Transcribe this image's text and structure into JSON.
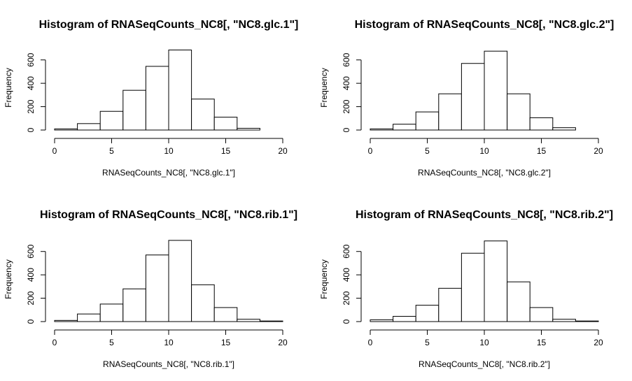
{
  "chart_data": [
    {
      "type": "bar",
      "title": "Histogram of RNASeqCounts_NC8[, \"NC8.glc.1\"]",
      "xlabel": "RNASeqCounts_NC8[, \"NC8.glc.1\"]",
      "ylabel": "Frequency",
      "bin_edges": [
        0,
        2,
        4,
        6,
        8,
        10,
        12,
        14,
        16,
        18,
        20
      ],
      "values": [
        10,
        55,
        160,
        340,
        545,
        685,
        265,
        110,
        15,
        0
      ],
      "xlim": [
        0,
        20
      ],
      "ylim": [
        0,
        700
      ],
      "xticks": [
        0,
        5,
        10,
        15,
        20
      ],
      "yticks": [
        0,
        200,
        400,
        600
      ],
      "grid": false
    },
    {
      "type": "bar",
      "title": "Histogram of RNASeqCounts_NC8[, \"NC8.glc.2\"]",
      "xlabel": "RNASeqCounts_NC8[, \"NC8.glc.2\"]",
      "ylabel": "Frequency",
      "bin_edges": [
        0,
        2,
        4,
        6,
        8,
        10,
        12,
        14,
        16,
        18,
        20
      ],
      "values": [
        10,
        50,
        155,
        310,
        570,
        675,
        310,
        105,
        20,
        0
      ],
      "xlim": [
        0,
        20
      ],
      "ylim": [
        0,
        700
      ],
      "xticks": [
        0,
        5,
        10,
        15,
        20
      ],
      "yticks": [
        0,
        200,
        400,
        600
      ],
      "grid": false
    },
    {
      "type": "bar",
      "title": "Histogram of RNASeqCounts_NC8[, \"NC8.rib.1\"]",
      "xlabel": "RNASeqCounts_NC8[, \"NC8.rib.1\"]",
      "ylabel": "Frequency",
      "bin_edges": [
        0,
        2,
        4,
        6,
        8,
        10,
        12,
        14,
        16,
        18,
        20
      ],
      "values": [
        10,
        65,
        150,
        280,
        570,
        695,
        315,
        120,
        20,
        5
      ],
      "xlim": [
        0,
        20
      ],
      "ylim": [
        0,
        700
      ],
      "xticks": [
        0,
        5,
        10,
        15,
        20
      ],
      "yticks": [
        0,
        200,
        400,
        600
      ],
      "grid": false
    },
    {
      "type": "bar",
      "title": "Histogram of RNASeqCounts_NC8[, \"NC8.rib.2\"]",
      "xlabel": "RNASeqCounts_NC8[, \"NC8.rib.2\"]",
      "ylabel": "Frequency",
      "bin_edges": [
        0,
        2,
        4,
        6,
        8,
        10,
        12,
        14,
        16,
        18,
        20
      ],
      "values": [
        15,
        45,
        140,
        285,
        585,
        690,
        340,
        120,
        20,
        5
      ],
      "xlim": [
        0,
        20
      ],
      "ylim": [
        0,
        700
      ],
      "xticks": [
        0,
        5,
        10,
        15,
        20
      ],
      "yticks": [
        0,
        200,
        400,
        600
      ],
      "grid": false
    }
  ]
}
